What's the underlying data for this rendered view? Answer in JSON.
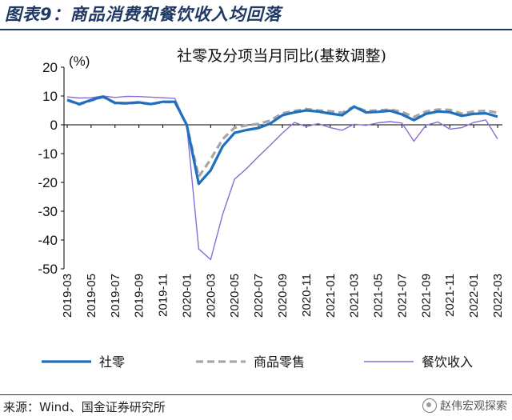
{
  "figure_title": "图表9：商品消费和餐饮收入均回落",
  "source": "来源：Wind、国金证券研究所",
  "watermark": "赵伟宏观探索",
  "chart_data": {
    "type": "line",
    "title": "社零及分项当月同比(基数调整)",
    "unit_label": "(%)",
    "ylim": [
      -50,
      20
    ],
    "yticks": [
      20,
      10,
      0,
      -10,
      -20,
      -30,
      -40,
      -50
    ],
    "x": [
      "2019-03",
      "2019-04",
      "2019-05",
      "2019-06",
      "2019-07",
      "2019-08",
      "2019-09",
      "2019-10",
      "2019-11",
      "2019-12",
      "2020-01",
      "2020-02",
      "2020-03",
      "2020-04",
      "2020-05",
      "2020-06",
      "2020-07",
      "2020-08",
      "2020-09",
      "2020-10",
      "2020-11",
      "2020-12",
      "2021-01",
      "2021-02",
      "2021-03",
      "2021-04",
      "2021-05",
      "2021-06",
      "2021-07",
      "2021-08",
      "2021-09",
      "2021-10",
      "2021-11",
      "2021-12",
      "2022-01",
      "2022-02",
      "2022-03"
    ],
    "xtick_labels": [
      "2019-03",
      "2019-05",
      "2019-07",
      "2019-09",
      "2019-11",
      "2020-01",
      "2020-03",
      "2020-05",
      "2020-07",
      "2020-09",
      "2020-11",
      "2021-01",
      "2021-03",
      "2021-05",
      "2021-07",
      "2021-09",
      "2021-11",
      "2022-01",
      "2022-03"
    ],
    "grid": false,
    "legend_position": "bottom",
    "series": [
      {
        "name": "社零",
        "color": "#1f6fbf",
        "style": "solid",
        "values": [
          8.7,
          7.2,
          8.6,
          9.8,
          7.6,
          7.5,
          7.8,
          7.2,
          8.0,
          8.0,
          0,
          -20.5,
          -15.8,
          -7.5,
          -2.8,
          -1.8,
          -1.1,
          0.5,
          3.3,
          4.3,
          5.0,
          4.6,
          3.9,
          3.3,
          6.3,
          4.3,
          4.5,
          4.9,
          3.6,
          1.6,
          3.8,
          4.6,
          4.4,
          3.1,
          3.8,
          4.0,
          2.8
        ]
      },
      {
        "name": "商品零售",
        "color": "#a6a6a6",
        "style": "dashed",
        "values": [
          8.5,
          7.0,
          8.4,
          9.6,
          7.5,
          7.4,
          7.7,
          7.1,
          7.9,
          7.9,
          0,
          -18.0,
          -12.0,
          -5.0,
          -1.0,
          -0.2,
          0.3,
          1.5,
          4.0,
          4.8,
          5.5,
          5.0,
          4.7,
          4.2,
          6.4,
          4.8,
          5.0,
          5.3,
          4.5,
          2.7,
          4.6,
          5.3,
          5.2,
          3.9,
          4.6,
          4.9,
          4.2
        ]
      },
      {
        "name": "餐饮收入",
        "color": "#8b6bd6",
        "style": "solid-thin",
        "values": [
          9.7,
          9.3,
          9.4,
          10.0,
          9.5,
          9.9,
          9.8,
          9.6,
          9.4,
          9.2,
          0,
          -43.1,
          -46.8,
          -31.1,
          -18.9,
          -15.2,
          -11.0,
          -7.0,
          -2.9,
          0.8,
          -0.6,
          0.4,
          -1.0,
          -1.9,
          0.2,
          -0.2,
          0.7,
          1.1,
          0.6,
          -5.7,
          -0.2,
          1.0,
          -1.5,
          -1.0,
          0.8,
          1.7,
          -4.9
        ]
      }
    ]
  }
}
